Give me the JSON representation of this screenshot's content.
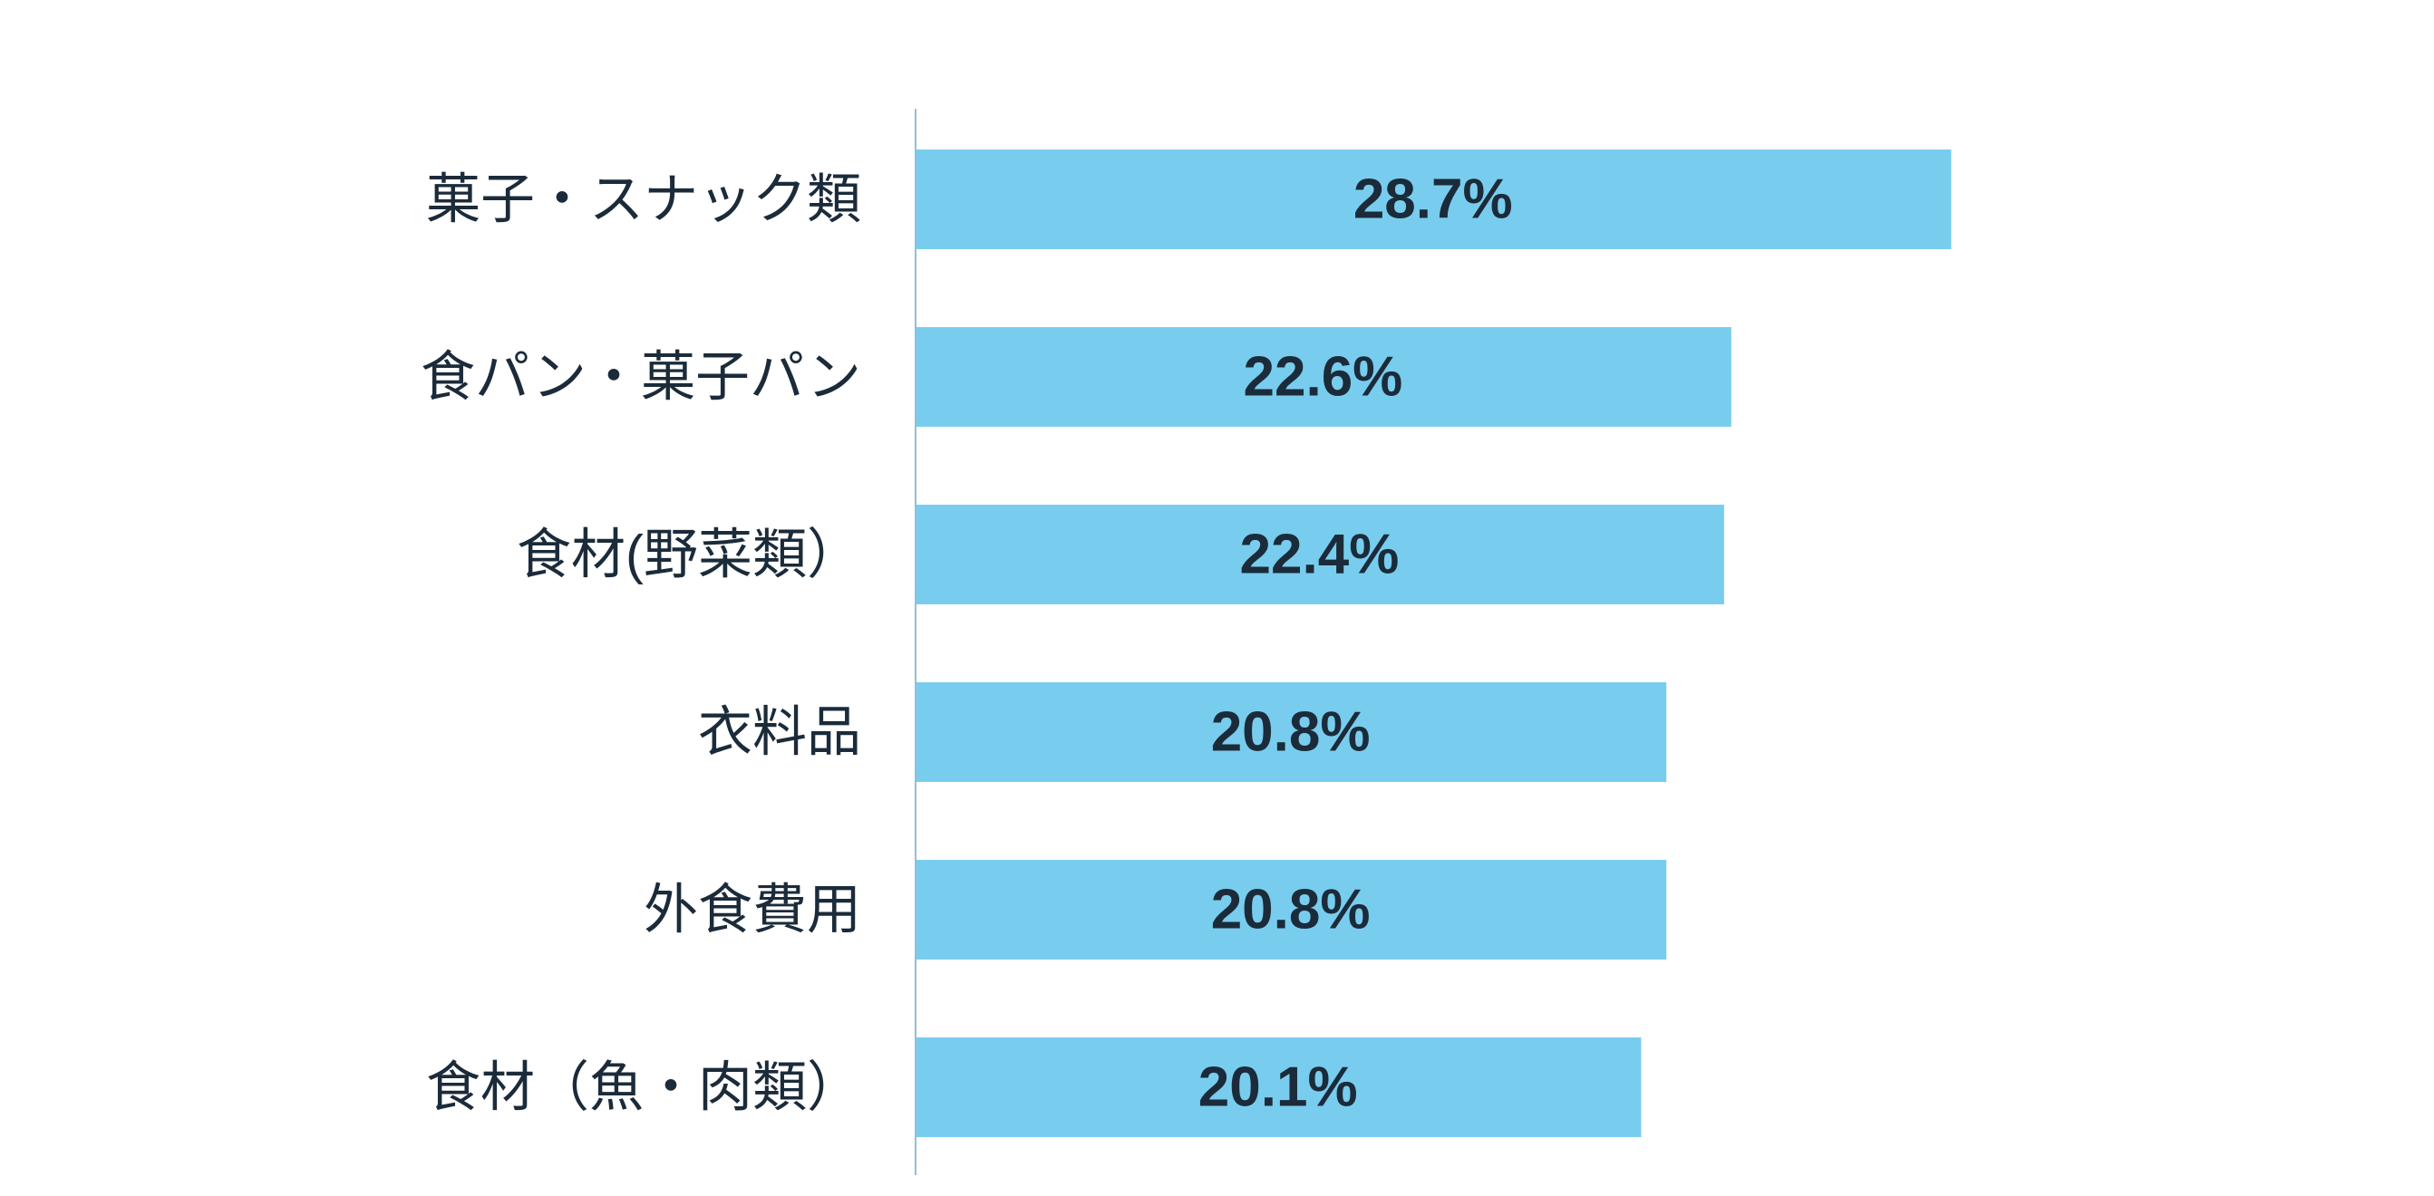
{
  "chart_data": {
    "type": "bar",
    "orientation": "horizontal",
    "categories": [
      "菓子・スナック類",
      "食パン・菓子パン",
      "食材(野菜類）",
      "衣料品",
      "外食費用",
      "食材（魚・肉類）"
    ],
    "values": [
      28.7,
      22.6,
      22.4,
      20.8,
      20.8,
      20.1
    ],
    "data_labels": [
      "28.7%",
      "22.6%",
      "22.4%",
      "20.8%",
      "20.8%",
      "20.1%"
    ],
    "unit": "%",
    "title": "",
    "xlabel": "",
    "ylabel": "",
    "xlim": [
      0,
      35
    ],
    "grid": false,
    "legend": "none",
    "bar_color": "#78CDEE",
    "label_color": "#1B2B3A",
    "axis_color": "#8FC1DA"
  }
}
